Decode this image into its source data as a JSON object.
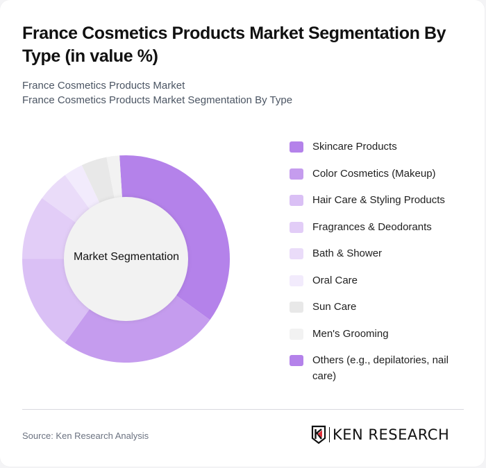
{
  "header": {
    "title": "France Cosmetics Products Market Segmentation By Type (in value %)",
    "subtitle_line1": "France Cosmetics Products Market",
    "subtitle_line2": "France Cosmetics Products Market Segmentation By Type"
  },
  "chart": {
    "center_label": "Market Segmentation"
  },
  "legend": [
    {
      "label": "Skincare Products",
      "color": "#b482ea"
    },
    {
      "label": "Color Cosmetics (Makeup)",
      "color": "#c59cee"
    },
    {
      "label": "Hair Care & Styling Products",
      "color": "#dac0f5"
    },
    {
      "label": "Fragrances & Deodorants",
      "color": "#e2cdf7"
    },
    {
      "label": "Bath & Shower",
      "color": "#eadcf9"
    },
    {
      "label": "Oral Care",
      "color": "#f2ebfc"
    },
    {
      "label": "Sun Care",
      "color": "#e8e8e8"
    },
    {
      "label": "Men's Grooming",
      "color": "#f2f2f2"
    },
    {
      "label": "Others (e.g., depilatories, nail care)",
      "color": "#b482ea"
    }
  ],
  "footer": {
    "source": "Source: Ken Research Analysis",
    "logo_text": "KEN RESEARCH"
  },
  "chart_data": {
    "type": "pie",
    "donut": true,
    "title": "France Cosmetics Products Market Segmentation By Type (in value %)",
    "center_label": "Market Segmentation",
    "categories": [
      "Skincare Products",
      "Color Cosmetics (Makeup)",
      "Hair Care & Styling Products",
      "Fragrances & Deodorants",
      "Bath & Shower",
      "Oral Care",
      "Sun Care",
      "Men's Grooming",
      "Others (e.g., depilatories, nail care)"
    ],
    "values": [
      35,
      25,
      15,
      10,
      5,
      3,
      4,
      2,
      1
    ],
    "colors": [
      "#b482ea",
      "#c59cee",
      "#dac0f5",
      "#e2cdf7",
      "#eadcf9",
      "#f2ebfc",
      "#e8e8e8",
      "#f2f2f2",
      "#b482ea"
    ],
    "legend_position": "right",
    "unit": "%"
  }
}
